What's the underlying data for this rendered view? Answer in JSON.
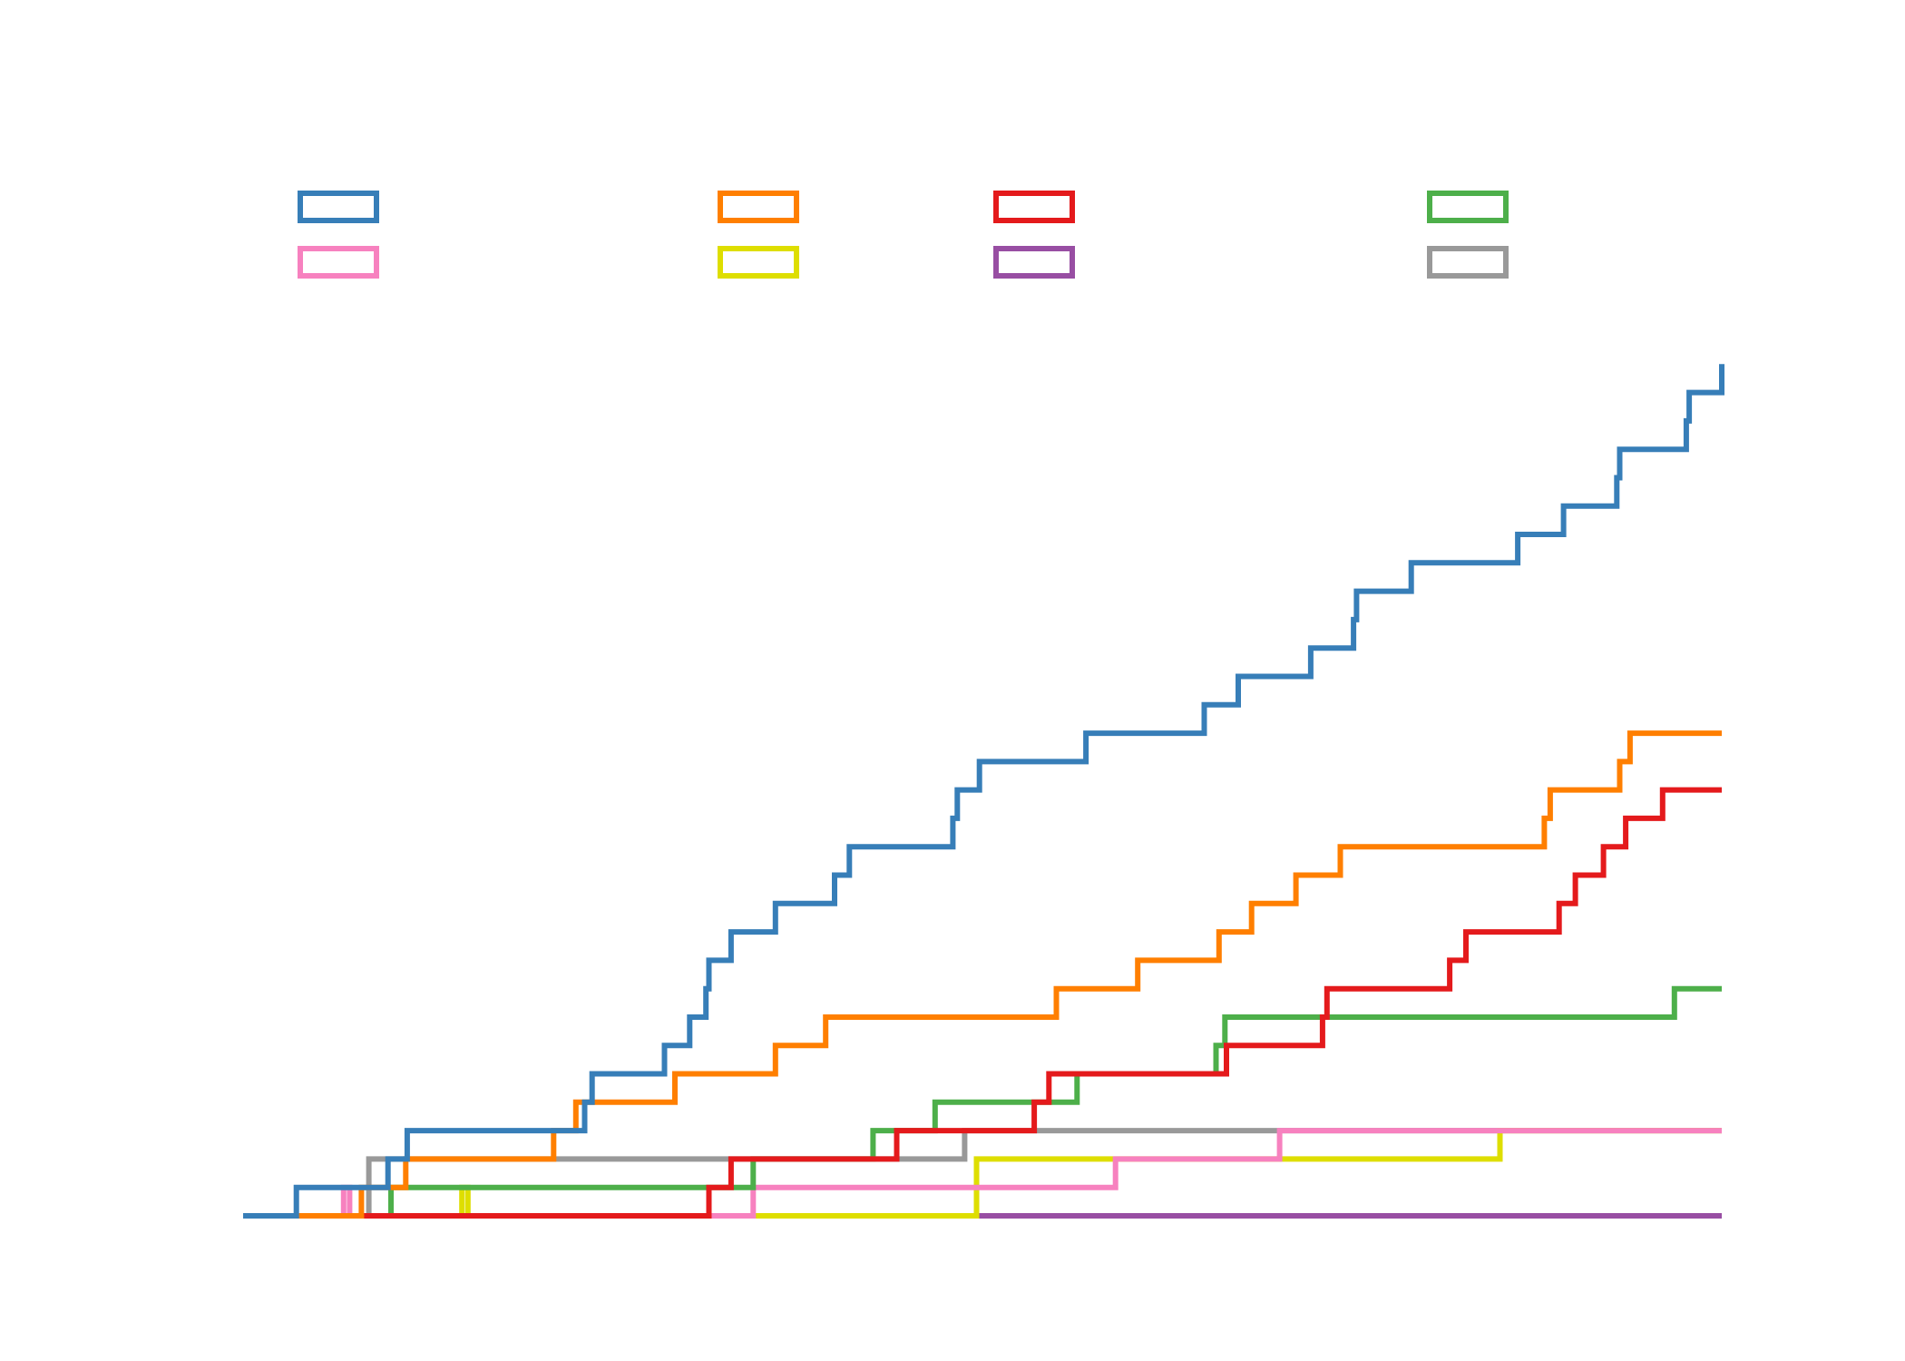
{
  "chart_data": {
    "type": "line",
    "step": "post",
    "title": "",
    "xlabel": "",
    "ylabel": "",
    "xlim": [
      0,
      1000
    ],
    "ylim": [
      0,
      31
    ],
    "grid": false,
    "axes_visible": false,
    "legend": {
      "placement": "top",
      "columns": 4,
      "frame": false
    },
    "series": [
      {
        "color": "#377eb8",
        "x": [
          0,
          36,
          98,
          111,
          231,
          236,
          285,
          302,
          313,
          315,
          330,
          360,
          400,
          410,
          480,
          483,
          498,
          570,
          650,
          673,
          722,
          751,
          753,
          790,
          862,
          893,
          929,
          931,
          976,
          978,
          1000
        ],
        "y": [
          0,
          1,
          2,
          3,
          4,
          5,
          6,
          7,
          8,
          9,
          10,
          11,
          12,
          13,
          14,
          15,
          16,
          17,
          18,
          19,
          20,
          21,
          22,
          23,
          24,
          25,
          26,
          27,
          28,
          29,
          30
        ]
      },
      {
        "color": "#ff7f00",
        "x": [
          0,
          40,
          80,
          110,
          210,
          225,
          292,
          360,
          394,
          550,
          605,
          660,
          682,
          712,
          742,
          880,
          884,
          931,
          938,
          1000
        ],
        "y": [
          0,
          0,
          1,
          2,
          3,
          4,
          5,
          6,
          7,
          8,
          9,
          10,
          11,
          12,
          13,
          14,
          15,
          16,
          17,
          17
        ]
      },
      {
        "color": "#e41a1c",
        "x": [
          0,
          315,
          330,
          442,
          535,
          545,
          665,
          730,
          733,
          816,
          827,
          890,
          901,
          920,
          935,
          960,
          1000
        ],
        "y": [
          0,
          1,
          2,
          3,
          4,
          5,
          6,
          7,
          8,
          9,
          10,
          11,
          12,
          13,
          14,
          15,
          15
        ]
      },
      {
        "color": "#4daf4a",
        "x": [
          0,
          100,
          345,
          426,
          468,
          564,
          658,
          664,
          968,
          1000
        ],
        "y": [
          0,
          1,
          2,
          3,
          4,
          5,
          6,
          7,
          8,
          8
        ]
      },
      {
        "color": "#f781bf",
        "x": [
          0,
          68,
          72,
          345,
          590,
          701,
          1000
        ],
        "y": [
          0,
          1,
          0,
          1,
          2,
          3,
          3
        ]
      },
      {
        "color": "#dede00",
        "x": [
          0,
          148,
          152,
          496,
          850,
          1000
        ],
        "y": [
          0,
          1,
          0,
          2,
          3,
          3
        ]
      },
      {
        "color": "#984ea3",
        "x": [
          0,
          1000
        ],
        "y": [
          0,
          0
        ]
      },
      {
        "color": "#999999",
        "x": [
          0,
          80,
          85,
          488,
          1000
        ],
        "y": [
          0,
          0,
          2,
          3,
          3
        ]
      }
    ]
  }
}
